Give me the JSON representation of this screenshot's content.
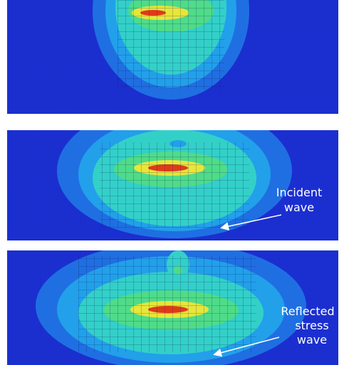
{
  "annotations": [
    {
      "lines": [
        "Incident",
        "wave"
      ]
    },
    {
      "lines": [
        "Reflected",
        "stress",
        "wave"
      ]
    }
  ]
}
